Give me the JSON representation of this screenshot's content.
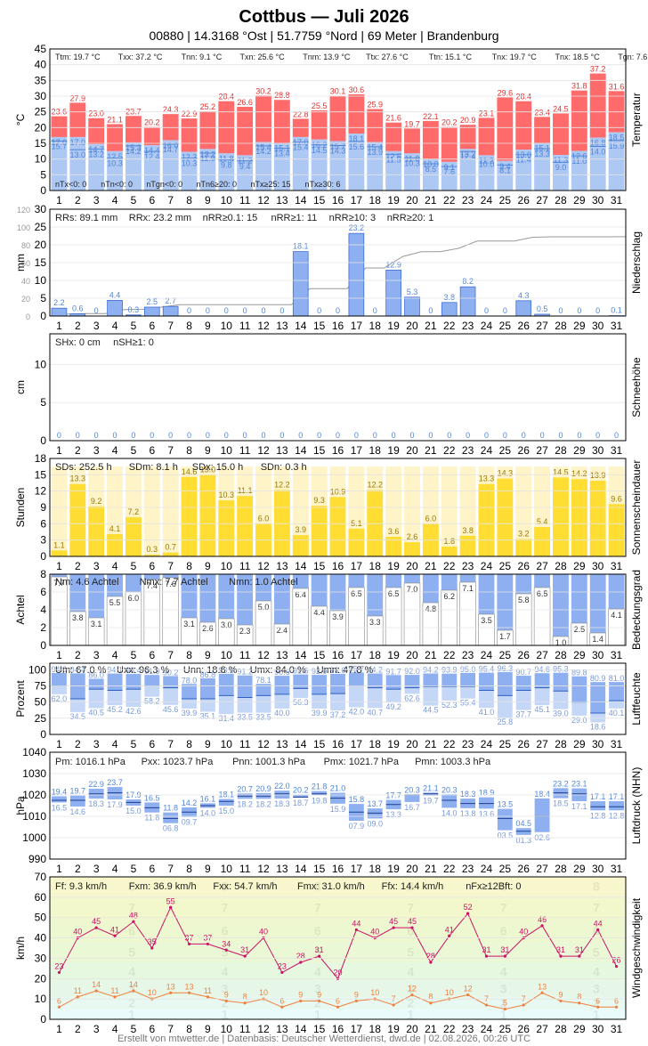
{
  "header": {
    "title": "Cottbus  —  Juli 2026",
    "subtitle": "00880  |  14.3168 °Ost  |  51.7759 °Nord  |  69 Meter  |  Brandenburg"
  },
  "footer": "Erstellt von mtwetter.de | Datenbasis: Deutscher Wetterdienst, dwd.de | 02.08.2026, 00:26 UTC",
  "days": [
    1,
    2,
    3,
    4,
    5,
    6,
    7,
    8,
    9,
    10,
    11,
    12,
    13,
    14,
    15,
    16,
    17,
    18,
    19,
    20,
    21,
    22,
    23,
    24,
    25,
    26,
    27,
    28,
    29,
    30,
    31
  ],
  "colors": {
    "tmax": "#ff6b6b",
    "tmin": "#aec8f4",
    "tmax_label": "#e03030",
    "tmin_label": "#4f86d8",
    "rain": "#8fb0f0",
    "rain_edge": "#3b6fd6",
    "sun": "#ffdd33",
    "cloud": "#8fb0f0",
    "hum_top": "#8fb0f0",
    "hum_bot": "#c5d7f7",
    "press": "#8fb0f0",
    "wind_avg": "#f08040",
    "wind_gust": "#cc1166"
  },
  "chart_data": [
    {
      "type": "bar",
      "name": "temperature",
      "ylabel": "°C",
      "side_label": "Temperatur",
      "ylim": [
        0,
        45
      ],
      "yticks": [
        0,
        5,
        10,
        15,
        20,
        25,
        30,
        35,
        40,
        45
      ],
      "stats_top": [
        "Ttm: 19.7 °C",
        "Txx: 37.2 °C",
        "Tnn: 9.1 °C",
        "Txn: 25.6 °C",
        "Tnm: 13.9 °C",
        "Ttx: 27.6 °C",
        "Ttn: 15.1 °C",
        "Tnx: 19.7 °C",
        "Tnx: 18.5 °C",
        "Tgn: 7.6 °C"
      ],
      "stats_bottom": [
        "nTx<0: 0",
        "nTn<0: 0",
        "nTgn<0: 0",
        "nTn6≥20: 0",
        "nTx≥25: 15",
        "nTx≥30: 6"
      ],
      "tmax": [
        23.6,
        27.9,
        23.0,
        21.1,
        23.7,
        20.2,
        24.3,
        22.9,
        25.2,
        28.4,
        26.6,
        30.2,
        28.8,
        22.8,
        25.5,
        30.1,
        30.6,
        25.9,
        21.6,
        19.7,
        22.1,
        20.2,
        20.9,
        23.1,
        29.6,
        28.4,
        23.4,
        24.5,
        31.8,
        37.2,
        31.6
      ],
      "tavg": [
        17.0,
        17.0,
        14.7,
        12.5,
        15.3,
        14.4,
        16.0,
        12.3,
        13.2,
        11.8,
        11.2,
        15.4,
        15.1,
        17.0,
        16.2,
        15.7,
        18.1,
        15.4,
        12.5,
        11.8,
        10.0,
        9.1,
        13.2,
        11.2,
        9.4,
        13.0,
        15.1,
        11.3,
        12.6,
        16.8,
        18.5
      ],
      "tmin": [
        15.7,
        13.0,
        13.2,
        10.3,
        14.2,
        12.4,
        14.7,
        10.3,
        11.9,
        9.8,
        9.4,
        14.2,
        13.4,
        15.4,
        14.5,
        14.3,
        15.6,
        13.9,
        11.5,
        10.3,
        8.5,
        7.6,
        12.4,
        10.0,
        8.1,
        11.4,
        13.3,
        9.0,
        11.0,
        14.0,
        15.9
      ]
    },
    {
      "type": "bar",
      "name": "precipitation",
      "ylabel": "mm",
      "side_label": "Niederschlag",
      "ylim": [
        0,
        30
      ],
      "yticks": [
        0,
        5,
        10,
        15,
        20,
        25,
        30
      ],
      "cum_ticks": [
        0,
        20,
        40,
        60,
        80,
        100,
        120
      ],
      "stats": [
        "RRs: 89.1 mm",
        "RRx: 23.2 mm",
        "nRR≥0.1: 15",
        "nRR≥1: 11",
        "nRR≥10: 3",
        "nRR≥20: 1"
      ],
      "values": [
        2.2,
        0.6,
        0,
        4.4,
        0.3,
        2.5,
        2.7,
        0,
        0,
        0,
        0,
        0,
        0,
        18.1,
        0,
        0,
        23.2,
        0,
        12.9,
        5.3,
        0,
        3.8,
        8.2,
        0,
        0,
        4.3,
        0.5,
        0,
        0,
        0,
        0.1
      ]
    },
    {
      "type": "bar",
      "name": "snow",
      "ylabel": "cm",
      "side_label": "Schneehöhe",
      "ylim": [
        0,
        14
      ],
      "yticks": [
        0,
        5,
        10
      ],
      "stats": [
        "SHx: 0 cm",
        "nSH≥1: 0"
      ],
      "values": [
        0,
        0,
        0,
        0,
        0,
        0,
        0,
        0,
        0,
        0,
        0,
        0,
        0,
        0,
        0,
        0,
        0,
        0,
        0,
        0,
        0,
        0,
        0,
        0,
        0,
        0,
        0,
        0,
        0,
        0,
        0
      ]
    },
    {
      "type": "bar",
      "name": "sunshine",
      "ylabel": "Stunden",
      "side_label": "Sonnenscheindauer",
      "ylim": [
        0,
        18
      ],
      "yticks": [
        0,
        3,
        6,
        9,
        12,
        15,
        18
      ],
      "stats": [
        "SDs: 252.5 h",
        "SDm: 8.1 h",
        "SDx: 15.0 h",
        "SDn: 0.3 h"
      ],
      "values": [
        1.1,
        13.3,
        9.2,
        4.1,
        7.2,
        0.3,
        0.7,
        14.6,
        15.0,
        10.3,
        11.1,
        6.0,
        12.2,
        3.9,
        9.3,
        10.9,
        5.1,
        12.2,
        3.6,
        2.6,
        6.0,
        1.8,
        3.8,
        13.3,
        14.3,
        3.2,
        5.4,
        14.5,
        14.2,
        13.9,
        9.6
      ]
    },
    {
      "type": "bar",
      "name": "cloud_cover",
      "ylabel": "Achtel",
      "side_label": "Bedeckungsgrad",
      "ylim": [
        0,
        8
      ],
      "yticks": [
        0,
        2,
        4,
        6,
        8
      ],
      "stats": [
        "Nm: 4.6 Achtel",
        "Nmx: 7.7 Achtel",
        "Nmn: 1.0 Achtel"
      ],
      "values": [
        7.7,
        3.8,
        3.1,
        5.5,
        6.0,
        7.4,
        7.6,
        3.1,
        2.6,
        3.0,
        2.3,
        5.0,
        2.4,
        6.4,
        4.4,
        3.9,
        6.5,
        3.3,
        6.5,
        7.0,
        4.8,
        6.2,
        7.1,
        3.5,
        1.7,
        5.8,
        6.5,
        1.0,
        2.5,
        1.4,
        4.1
      ]
    },
    {
      "type": "bar",
      "name": "humidity",
      "ylabel": "Prozent",
      "side_label": "Luftfeuchte",
      "ylim": [
        0,
        110
      ],
      "yticks": [
        0,
        25,
        50,
        75,
        100
      ],
      "stats": [
        "Um: 67.0 %",
        "Uxx: 96.3 %",
        "Unn: 18.6 %",
        "Umx: 84.0 %",
        "Umn: 47.8 %"
      ],
      "max": [
        94.9,
        94.4,
        86.0,
        94.1,
        93.4,
        91.9,
        90.2,
        78.0,
        86.8,
        93.6,
        91.2,
        78.1,
        90.6,
        92.6,
        92.0,
        93.6,
        95.7,
        94.2,
        91.7,
        92.0,
        94.2,
        93.9,
        95.0,
        95.4,
        96.3,
        90.7,
        94.6,
        95.3,
        89.8,
        80.9,
        81.0
      ],
      "avg": [
        75.0,
        55.0,
        70.0,
        68.0,
        70.0,
        75.0,
        72.0,
        55.0,
        55.0,
        60.0,
        57.0,
        60.0,
        62.0,
        71.0,
        62.0,
        63.0,
        75.0,
        72.0,
        70.0,
        72.0,
        74.0,
        74.0,
        74.0,
        68.0,
        60.0,
        68.0,
        72.0,
        67.0,
        50.0,
        33.0,
        52.0
      ],
      "min": [
        62.0,
        34.5,
        40.5,
        45.2,
        42.6,
        58.2,
        45.6,
        39.9,
        35.1,
        31.4,
        33.5,
        33.5,
        40.0,
        56.3,
        39.9,
        37.2,
        42.0,
        40.7,
        49.2,
        62.6,
        44.5,
        52.3,
        55.4,
        41.0,
        25.8,
        37.7,
        45.1,
        39.0,
        29.0,
        18.6,
        40.1
      ]
    },
    {
      "type": "bar",
      "name": "pressure",
      "ylabel": "hPa",
      "side_label": "Luftdruck (NHN)",
      "ylim": [
        990,
        1040
      ],
      "yticks": [
        990,
        1000,
        1010,
        1020,
        1030,
        1040
      ],
      "stats": [
        "Pm: 1016.1 hPa",
        "Pxx: 1023.7 hPa",
        "Pnn: 1001.3 hPa",
        "Pmx: 1021.7 hPa",
        "Pmn: 1003.3 hPa"
      ],
      "max": [
        1019.4,
        1019.7,
        1022.9,
        1023.7,
        1017.9,
        1016.5,
        1011.8,
        1014.2,
        1016.1,
        1018.1,
        1020.7,
        1020.9,
        1022.0,
        1020.2,
        1021.8,
        1021.0,
        1015.8,
        1013.7,
        1017.7,
        1020.3,
        1021.1,
        1020.3,
        1018.3,
        1018.9,
        1013.5,
        1004.5,
        1018.4,
        1023.2,
        1023.1,
        1017.1,
        1017.1
      ],
      "avg": [
        1017.5,
        1017.5,
        1020.5,
        1021.0,
        1016.5,
        1014.0,
        1009.0,
        1012.0,
        1015.0,
        1017.0,
        1019.5,
        1019.5,
        1020.5,
        1019.0,
        1020.5,
        1018.5,
        1012.0,
        1011.5,
        1015.5,
        1020.0,
        1020.5,
        1017.5,
        1016.0,
        1016.0,
        1009.0,
        1003.0,
        1010.0,
        1021.0,
        1020.5,
        1014.5,
        1014.5
      ],
      "min": [
        1016.5,
        1014.6,
        1018.3,
        1017.9,
        1015.0,
        1011.8,
        1006.8,
        1009.7,
        1014.0,
        1015.0,
        1018.2,
        1018.2,
        1018.3,
        1018.7,
        1019.8,
        1015.9,
        1007.9,
        1009.0,
        1013.3,
        1016.7,
        1019.7,
        1014.0,
        1013.8,
        1013.6,
        1003.5,
        1001.3,
        1002.6,
        1018.5,
        1017.1,
        1012.8,
        1012.8
      ]
    },
    {
      "type": "line",
      "name": "wind",
      "ylabel": "km/h",
      "side_label": "Windgeschwindigkeit",
      "ylim": [
        0,
        70
      ],
      "yticks": [
        0,
        10,
        20,
        30,
        40,
        50,
        60,
        70
      ],
      "stats": [
        "Ff: 9.3 km/h",
        "Fxm: 36.9 km/h",
        "Fxx: 54.7 km/h",
        "Fmx: 31.0 km/h",
        "Ffx: 14.4 km/h",
        "nFx≥12Bft: 0"
      ],
      "beaufort_bands": [
        {
          "bft": "1",
          "from": 0,
          "to": 5,
          "color": "#eafbfb"
        },
        {
          "bft": "2",
          "from": 5,
          "to": 11,
          "color": "#e8f9f1"
        },
        {
          "bft": "3",
          "from": 11,
          "to": 19,
          "color": "#e6f7e8"
        },
        {
          "bft": "4",
          "from": 19,
          "to": 28,
          "color": "#e6f8e0"
        },
        {
          "bft": "5",
          "from": 28,
          "to": 38,
          "color": "#eaf8d6"
        },
        {
          "bft": "6",
          "from": 38,
          "to": 49,
          "color": "#eef8d0"
        },
        {
          "bft": "7",
          "from": 49,
          "to": 61,
          "color": "#f3f8cc"
        },
        {
          "bft": "8",
          "from": 61,
          "to": 70,
          "color": "#f8f6cc"
        }
      ],
      "gust": [
        23,
        40,
        45,
        41,
        48,
        35,
        55,
        37,
        37,
        34,
        31,
        40,
        23,
        28,
        31,
        20,
        44,
        40,
        45,
        45,
        28,
        41,
        52,
        31,
        31,
        40,
        46,
        31,
        31,
        44,
        26
      ],
      "avg": [
        6,
        11,
        14,
        11,
        14,
        10,
        13,
        13,
        11,
        9,
        8,
        10,
        6,
        9,
        9,
        6,
        9,
        10,
        7,
        12,
        8,
        10,
        12,
        7,
        5,
        7,
        13,
        9,
        8,
        6,
        6
      ]
    }
  ]
}
